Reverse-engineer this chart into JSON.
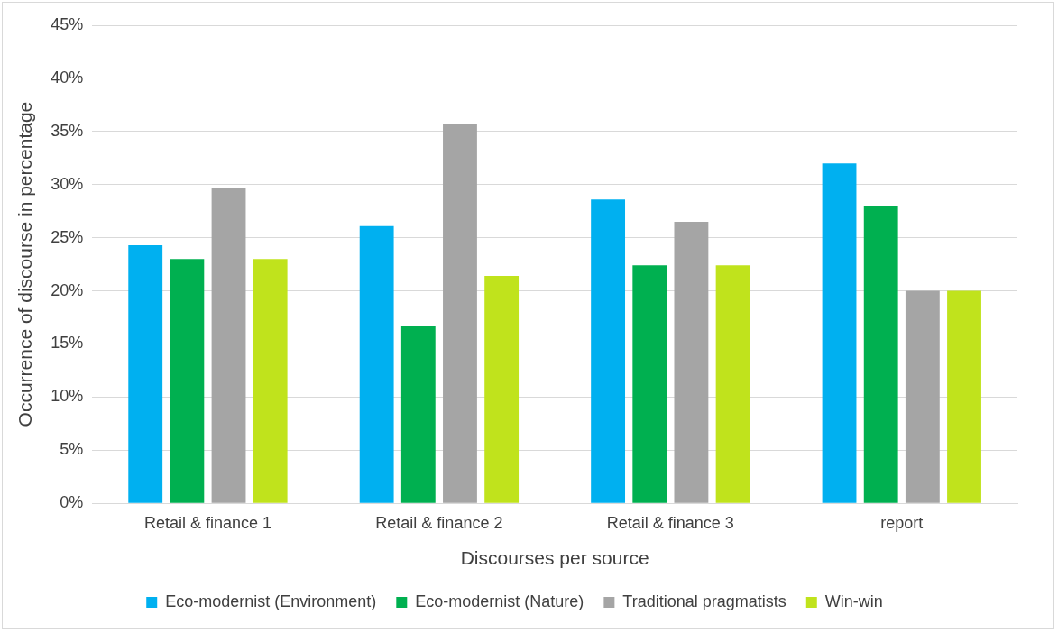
{
  "chart_data": {
    "type": "bar",
    "xlabel": "Discourses per source",
    "ylabel": "Occurrence of discourse in percentage",
    "categories": [
      "Retail & finance 1",
      "Retail & finance 2",
      "Retail & finance 3",
      "report"
    ],
    "series": [
      {
        "name": "Eco-modernist (Environment)",
        "color": "#00b0f0",
        "values": [
          24.3,
          26.1,
          28.6,
          32
        ]
      },
      {
        "name": "Eco-modernist (Nature)",
        "color": "#00b050",
        "values": [
          23,
          16.7,
          22.4,
          28
        ]
      },
      {
        "name": "Traditional pragmatists",
        "color": "#a5a5a5",
        "values": [
          29.7,
          35.7,
          26.5,
          20
        ]
      },
      {
        "name": "Win-win",
        "color": "#c0e31c",
        "values": [
          23,
          21.4,
          22.4,
          20
        ]
      }
    ],
    "ylim": [
      0,
      45
    ],
    "yticks": [
      {
        "value": 0,
        "label": "0%"
      },
      {
        "value": 5,
        "label": "5%"
      },
      {
        "value": 10,
        "label": "10%"
      },
      {
        "value": 15,
        "label": "15%"
      },
      {
        "value": 20,
        "label": "20%"
      },
      {
        "value": 25,
        "label": "25%"
      },
      {
        "value": 30,
        "label": "30%"
      },
      {
        "value": 35,
        "label": "35%"
      },
      {
        "value": 40,
        "label": "40%"
      },
      {
        "value": 45,
        "label": "45%"
      }
    ],
    "grid": "y",
    "legend": "bottom"
  }
}
